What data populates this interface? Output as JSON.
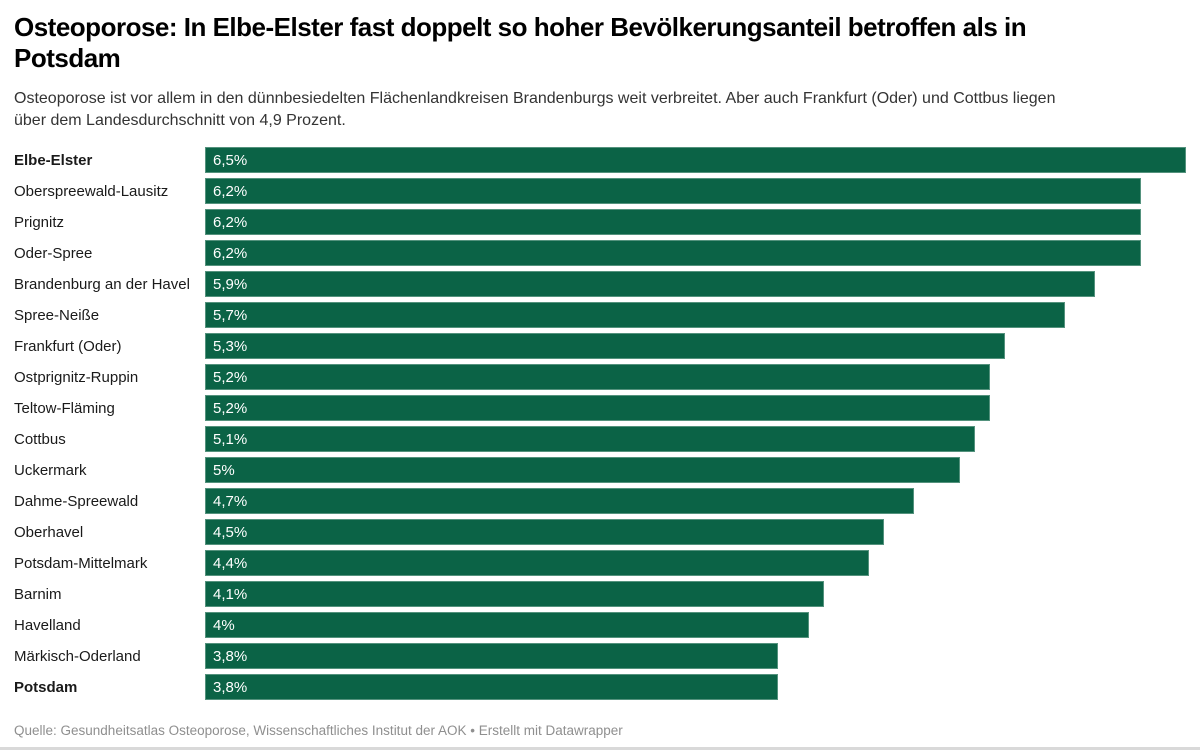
{
  "header": {
    "title_lines": [
      "Osteoporose: In Elbe-Elster fast doppelt so hoher Bevölkerungsanteil betroffen als in",
      "Potsdam"
    ],
    "subtitle_lines": [
      "Osteoporose ist vor allem in den dünnbesiedelten Flächenlandkreisen Brandenburgs weit verbreitet. Aber auch Frankfurt (Oder) und Cottbus liegen",
      "über dem Landesdurchschnitt von 4,9 Prozent."
    ]
  },
  "chart_data": {
    "type": "bar",
    "orientation": "horizontal",
    "title": "Osteoporose: In Elbe-Elster fast doppelt so hoher Bevölkerungsanteil betroffen als in Potsdam",
    "subtitle": "Osteoporose ist vor allem in den dünnbesiedelten Flächenlandkreisen Brandenburgs weit verbreitet. Aber auch Frankfurt (Oder) und Cottbus liegen über dem Landesdurchschnitt von 4,9 Prozent.",
    "xlabel": "",
    "ylabel": "",
    "xlim": [
      0,
      6.5
    ],
    "grid": false,
    "legend": false,
    "value_suffix": "%",
    "bar_color": "#0b6346",
    "value_label_color": "#ffffff",
    "bars": [
      {
        "label": "Elbe-Elster",
        "value": 6.5,
        "value_label": "6,5%",
        "bold": true
      },
      {
        "label": "Oberspreewald-Lausitz",
        "value": 6.2,
        "value_label": "6,2%",
        "bold": false
      },
      {
        "label": "Prignitz",
        "value": 6.2,
        "value_label": "6,2%",
        "bold": false
      },
      {
        "label": "Oder-Spree",
        "value": 6.2,
        "value_label": "6,2%",
        "bold": false
      },
      {
        "label": "Brandenburg an der Havel",
        "value": 5.9,
        "value_label": "5,9%",
        "bold": false
      },
      {
        "label": "Spree-Neiße",
        "value": 5.7,
        "value_label": "5,7%",
        "bold": false
      },
      {
        "label": "Frankfurt (Oder)",
        "value": 5.3,
        "value_label": "5,3%",
        "bold": false
      },
      {
        "label": "Ostprignitz-Ruppin",
        "value": 5.2,
        "value_label": "5,2%",
        "bold": false
      },
      {
        "label": "Teltow-Fläming",
        "value": 5.2,
        "value_label": "5,2%",
        "bold": false
      },
      {
        "label": "Cottbus",
        "value": 5.1,
        "value_label": "5,1%",
        "bold": false
      },
      {
        "label": "Uckermark",
        "value": 5.0,
        "value_label": "5%",
        "bold": false
      },
      {
        "label": "Dahme-Spreewald",
        "value": 4.7,
        "value_label": "4,7%",
        "bold": false
      },
      {
        "label": "Oberhavel",
        "value": 4.5,
        "value_label": "4,5%",
        "bold": false
      },
      {
        "label": "Potsdam-Mittelmark",
        "value": 4.4,
        "value_label": "4,4%",
        "bold": false
      },
      {
        "label": "Barnim",
        "value": 4.1,
        "value_label": "4,1%",
        "bold": false
      },
      {
        "label": "Havelland",
        "value": 4.0,
        "value_label": "4%",
        "bold": false
      },
      {
        "label": "Märkisch-Oderland",
        "value": 3.8,
        "value_label": "3,8%",
        "bold": false
      },
      {
        "label": "Potsdam",
        "value": 3.8,
        "value_label": "3,8%",
        "bold": true
      }
    ]
  },
  "footer": {
    "source": "Quelle: Gesundheitsatlas Osteoporose, Wissenschaftliches Institut der AOK • Erstellt mit Datawrapper"
  }
}
